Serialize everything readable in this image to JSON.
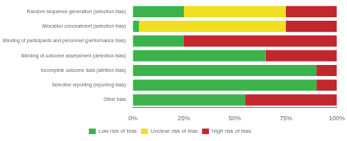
{
  "chart_data": {
    "type": "bar",
    "orientation": "horizontal",
    "stacked": true,
    "categories": [
      "Random sequence generation (selection bias)",
      "Allocation concealment (selection bias)",
      "Blinding of participants and personnel (performance bias)",
      "Blinding of outcome assessment (detection bias)",
      "Incomplete outcome data (attrition bias)",
      "Selective reporting (reporting bias)",
      "Other bias"
    ],
    "series": [
      {
        "name": "Low risk of bias",
        "color": "#3cb34a",
        "values": [
          25,
          3,
          25,
          65,
          90,
          90,
          55
        ]
      },
      {
        "name": "Unclear risk of bias",
        "color": "#f0e020",
        "values": [
          50,
          72,
          0,
          0,
          0,
          0,
          0
        ]
      },
      {
        "name": "High risk of bias",
        "color": "#c1272d",
        "values": [
          25,
          25,
          75,
          35,
          10,
          10,
          45
        ]
      }
    ],
    "xlim": [
      0,
      100
    ],
    "xticks": [
      {
        "value": 0,
        "label": "0%"
      },
      {
        "value": 25,
        "label": "25%"
      },
      {
        "value": 50,
        "label": "50%"
      },
      {
        "value": 75,
        "label": "75%"
      },
      {
        "value": 100,
        "label": "100%"
      }
    ],
    "grid": false,
    "legend": "bottom"
  }
}
